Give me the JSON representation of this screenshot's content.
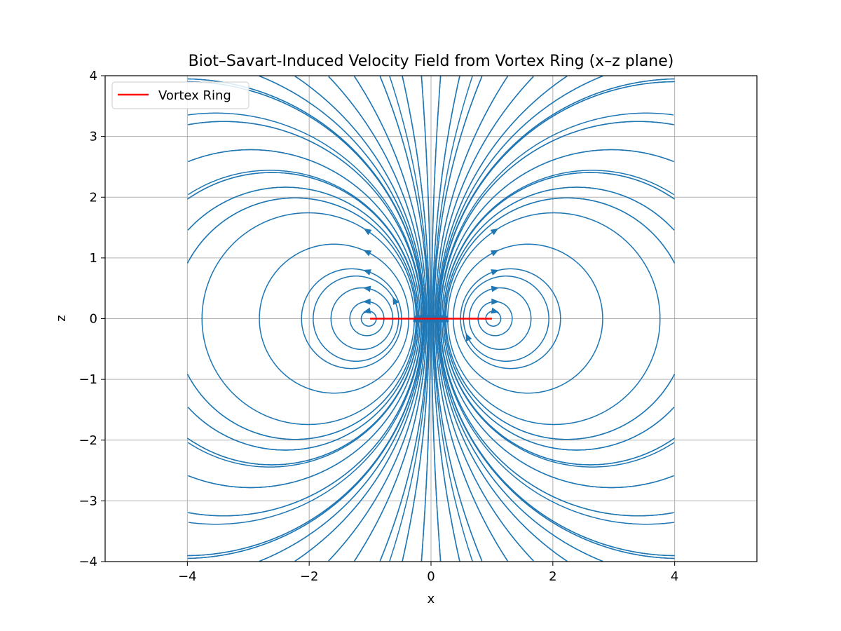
{
  "chart_data": {
    "type": "streamplot",
    "title": "Biot–Savart-Induced Velocity Field from Vortex Ring (x–z plane)",
    "xlabel": "x",
    "ylabel": "z",
    "xlim": [
      -5.35,
      5.35
    ],
    "ylim": [
      -4,
      4
    ],
    "xticks": [
      -4,
      -2,
      0,
      2,
      4
    ],
    "yticks": [
      -4,
      -3,
      -2,
      -1,
      0,
      1,
      2,
      3,
      4
    ],
    "grid": true,
    "field_domain": {
      "x": [
        -4,
        4
      ],
      "z": [
        -4,
        4
      ]
    },
    "stream_color": "#1f77b4",
    "legend": {
      "location": "upper-left",
      "entries": [
        {
          "label": "Vortex Ring",
          "color": "#ff0000"
        }
      ]
    },
    "vortex_ring": {
      "label": "Vortex Ring",
      "color": "#ff0000",
      "x": [
        -1,
        1
      ],
      "z": [
        0,
        0
      ],
      "cores": [
        {
          "x": -1,
          "z": 0,
          "sense": "counterclockwise"
        },
        {
          "x": 1,
          "z": 0,
          "sense": "clockwise"
        }
      ]
    },
    "seed_points": [
      [
        -3.9,
        3.9
      ],
      [
        -3.2,
        3.85
      ],
      [
        -2.6,
        3.9
      ],
      [
        -2.1,
        3.9
      ],
      [
        -1.6,
        3.9
      ],
      [
        -1.2,
        3.9
      ],
      [
        -0.8,
        3.9
      ],
      [
        -0.45,
        3.9
      ],
      [
        -0.15,
        3.9
      ],
      [
        3.9,
        3.9
      ],
      [
        3.2,
        3.85
      ],
      [
        2.6,
        3.9
      ],
      [
        2.1,
        3.9
      ],
      [
        1.6,
        3.9
      ],
      [
        1.2,
        3.9
      ],
      [
        0.8,
        3.9
      ],
      [
        0.45,
        3.9
      ],
      [
        0.15,
        3.9
      ],
      [
        -3.9,
        -3.9
      ],
      [
        -3.2,
        -3.85
      ],
      [
        -2.6,
        -3.9
      ],
      [
        -2.1,
        -3.9
      ],
      [
        -1.6,
        -3.9
      ],
      [
        -1.2,
        -3.9
      ],
      [
        -0.8,
        -3.9
      ],
      [
        -0.45,
        -3.9
      ],
      [
        -0.15,
        -3.9
      ],
      [
        3.9,
        -3.9
      ],
      [
        3.2,
        -3.85
      ],
      [
        2.6,
        -3.9
      ],
      [
        2.1,
        -3.9
      ],
      [
        1.6,
        -3.9
      ],
      [
        1.2,
        -3.9
      ],
      [
        0.8,
        -3.9
      ],
      [
        0.45,
        -3.9
      ],
      [
        0.15,
        -3.9
      ],
      [
        -3.95,
        3.2
      ],
      [
        -3.95,
        2.6
      ],
      [
        -3.95,
        2.0
      ],
      [
        -3.95,
        1.5
      ],
      [
        -3.95,
        1.0
      ],
      [
        -3.95,
        -1.0
      ],
      [
        -3.95,
        -1.5
      ],
      [
        -3.95,
        -2.0
      ],
      [
        -3.95,
        -2.6
      ],
      [
        -3.95,
        -3.2
      ],
      [
        3.95,
        3.2
      ],
      [
        3.95,
        2.6
      ],
      [
        3.95,
        2.0
      ],
      [
        3.95,
        1.5
      ],
      [
        3.95,
        1.0
      ],
      [
        3.95,
        -1.0
      ],
      [
        3.95,
        -1.5
      ],
      [
        3.95,
        -2.0
      ],
      [
        3.95,
        -2.6
      ],
      [
        3.95,
        -3.2
      ],
      [
        -1.05,
        0.12
      ],
      [
        -1.05,
        0.28
      ],
      [
        -1.05,
        0.5
      ],
      [
        -1.05,
        0.78
      ],
      [
        -1.05,
        1.1
      ],
      [
        -1.05,
        1.45
      ],
      [
        -1.05,
        1.85
      ],
      [
        1.05,
        0.12
      ],
      [
        1.05,
        0.28
      ],
      [
        1.05,
        0.5
      ],
      [
        1.05,
        0.78
      ],
      [
        1.05,
        1.1
      ],
      [
        1.05,
        1.45
      ],
      [
        1.05,
        1.85
      ],
      [
        -0.05,
        0.5
      ],
      [
        0.05,
        -0.5
      ],
      [
        -0.3,
        1.0
      ],
      [
        0.3,
        -1.0
      ],
      [
        -0.6,
        0.3
      ],
      [
        0.6,
        -0.3
      ]
    ]
  }
}
